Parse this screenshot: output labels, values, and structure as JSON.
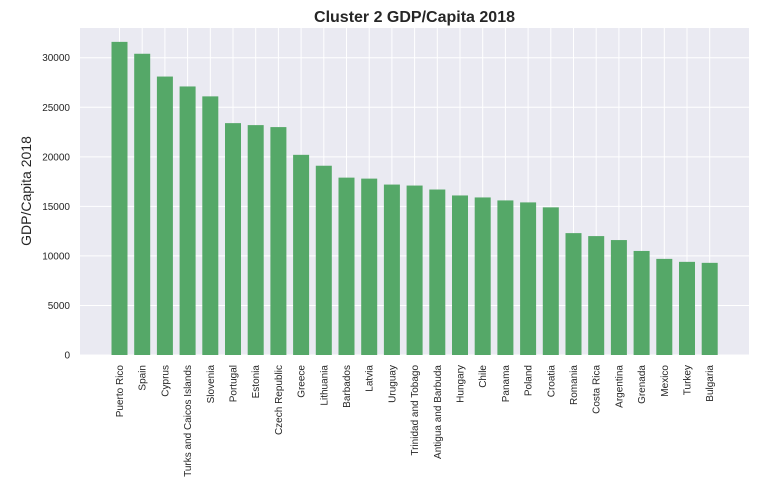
{
  "chart_data": {
    "type": "bar",
    "title": "Cluster 2 GDP/Capita 2018",
    "xlabel": "",
    "ylabel": "GDP/Capita 2018",
    "ylim": [
      0,
      33000
    ],
    "yticks": [
      0,
      5000,
      10000,
      15000,
      20000,
      25000,
      30000
    ],
    "grid": true,
    "legend": "none",
    "categories": [
      "Puerto Rico",
      "Spain",
      "Cyprus",
      "Turks and Caicos Islands",
      "Slovenia",
      "Portugal",
      "Estonia",
      "Czech Republic",
      "Greece",
      "Lithuania",
      "Barbados",
      "Latvia",
      "Uruguay",
      "Trinidad and Tobago",
      "Antigua and Barbuda",
      "Hungary",
      "Chile",
      "Panama",
      "Poland",
      "Croatia",
      "Romania",
      "Costa Rica",
      "Argentina",
      "Grenada",
      "Mexico",
      "Turkey",
      "Bulgaria"
    ],
    "values": [
      31600,
      30400,
      28100,
      27100,
      26100,
      23400,
      23200,
      23000,
      20200,
      19100,
      17900,
      17800,
      17200,
      17100,
      16700,
      16100,
      15900,
      15600,
      15400,
      14900,
      12300,
      12000,
      11600,
      10500,
      9700,
      9400,
      9300
    ],
    "colors": {
      "bar": "#55a868",
      "background": "#eaeaf2",
      "grid": "#ffffff",
      "text": "#262626"
    }
  }
}
